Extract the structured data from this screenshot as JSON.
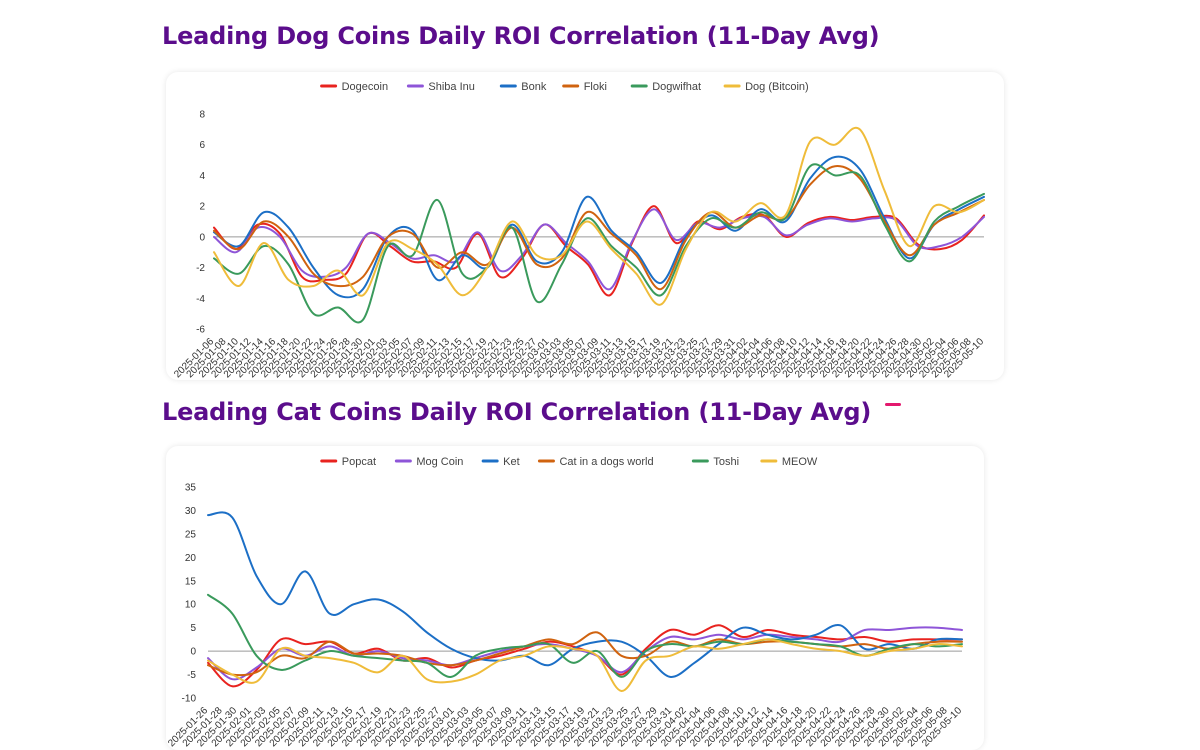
{
  "dog_section": {
    "title": "Leading Dog Coins Daily ROI Correlation (11-Day Avg)"
  },
  "cat_section": {
    "title": "Leading Cat Coins Daily ROI Correlation (11-Day Avg)"
  },
  "chart_data": [
    {
      "type": "line",
      "title": "Leading Dog Coins Daily ROI Correlation (11-Day Avg)",
      "legend_position": "top-center",
      "grid": false,
      "ylim": [
        -6,
        8
      ],
      "yticks": [
        8,
        6,
        4,
        2,
        0,
        -2,
        -4,
        -6
      ],
      "x_start": "2025-01-06",
      "x_end": "2025-05-10",
      "x_tick_labels": [
        "2025-01-06",
        "2025-01-08",
        "2025-01-10",
        "2025-01-12",
        "2025-01-14",
        "2025-01-16",
        "2025-01-18",
        "2025-01-20",
        "2025-01-22",
        "2025-01-24",
        "2025-01-26",
        "2025-01-28",
        "2025-01-30",
        "2025-02-01",
        "2025-02-03",
        "2025-02-05",
        "2025-02-07",
        "2025-02-09",
        "2025-02-11",
        "2025-02-13",
        "2025-02-15",
        "2025-02-17",
        "2025-02-19",
        "2025-02-21",
        "2025-02-23",
        "2025-02-25",
        "2025-02-27",
        "2025-03-01",
        "2025-03-03",
        "2025-03-05",
        "2025-03-07",
        "2025-03-09",
        "2025-03-11",
        "2025-03-13",
        "2025-03-15",
        "2025-03-17",
        "2025-03-19",
        "2025-03-21",
        "2025-03-23",
        "2025-03-25",
        "2025-03-27",
        "2025-03-29",
        "2025-03-31",
        "2025-04-02",
        "2025-04-04",
        "2025-04-06",
        "2025-04-08",
        "2025-04-10",
        "2025-04-12",
        "2025-04-14",
        "2025-04-16",
        "2025-04-18",
        "2025-04-20",
        "2025-04-22",
        "2025-04-24",
        "2025-04-26",
        "2025-04-28",
        "2025-04-30",
        "2025-05-02",
        "2025-05-04",
        "2025-05-06",
        "2025-05-08",
        "2025-05-10"
      ],
      "series": [
        {
          "name": "Dogecoin",
          "color": "#e8231f",
          "values": [
            0.6,
            -0.8,
            0.8,
            0.2,
            -2.6,
            -2.8,
            -2.4,
            0.2,
            -0.6,
            -1.6,
            -1.6,
            -2.0,
            0.2,
            -2.6,
            -1.4,
            0.8,
            -0.6,
            -1.8,
            -3.8,
            -0.4,
            2.0,
            -0.4,
            1.0,
            0.5,
            1.3,
            1.4,
            0.0,
            0.9,
            1.3,
            1.1,
            1.3,
            1.2,
            -0.5,
            -0.8,
            -0.2,
            1.4
          ]
        },
        {
          "name": "Shiba Inu",
          "color": "#8e55d8",
          "values": [
            0.0,
            -1.0,
            0.6,
            0.0,
            -2.2,
            -2.6,
            -2.0,
            0.2,
            -0.4,
            -1.4,
            -1.2,
            -1.6,
            0.3,
            -2.2,
            -1.2,
            0.8,
            -0.4,
            -1.6,
            -3.4,
            -0.3,
            1.8,
            -0.2,
            0.9,
            0.6,
            1.2,
            1.3,
            0.1,
            0.8,
            1.2,
            1.0,
            1.2,
            1.1,
            -0.6,
            -0.6,
            0.0,
            1.3
          ]
        },
        {
          "name": "Bonk",
          "color": "#1c6fc6",
          "values": [
            0.3,
            -0.6,
            1.6,
            0.6,
            -2.0,
            -3.8,
            -3.4,
            0.0,
            0.4,
            -2.8,
            -1.2,
            -2.0,
            0.8,
            -1.6,
            -1.0,
            2.6,
            0.4,
            -1.0,
            -3.0,
            0.0,
            1.4,
            0.4,
            1.8,
            1.0,
            3.8,
            5.2,
            4.4,
            1.2,
            -1.4,
            0.8,
            1.8,
            2.6
          ]
        },
        {
          "name": "Floki",
          "color": "#d0630f",
          "values": [
            0.4,
            -0.8,
            1.0,
            0.0,
            -2.4,
            -3.2,
            -2.6,
            0.0,
            0.2,
            -2.0,
            -1.0,
            -1.8,
            0.6,
            -1.8,
            -1.4,
            1.6,
            0.2,
            -1.2,
            -3.4,
            -0.2,
            1.6,
            0.6,
            1.4,
            1.2,
            3.4,
            4.6,
            3.8,
            1.0,
            -1.2,
            0.8,
            1.6,
            2.4
          ]
        },
        {
          "name": "Dogwifhat",
          "color": "#3a9a5c",
          "values": [
            -1.4,
            -2.4,
            -0.6,
            -1.8,
            -5.0,
            -4.6,
            -5.4,
            -0.6,
            -1.2,
            2.4,
            -2.4,
            -2.0,
            0.6,
            -4.2,
            -1.8,
            1.2,
            -0.6,
            -2.0,
            -3.8,
            -0.6,
            1.2,
            0.6,
            1.6,
            1.2,
            4.6,
            4.0,
            4.0,
            0.8,
            -1.6,
            1.0,
            2.0,
            2.8
          ]
        },
        {
          "name": "Dog (Bitcoin)",
          "color": "#efbc3a",
          "values": [
            -1.0,
            -3.2,
            -0.4,
            -2.8,
            -3.2,
            -2.2,
            -3.8,
            -0.4,
            -0.8,
            -1.8,
            -3.8,
            -2.0,
            1.0,
            -1.2,
            -1.2,
            1.0,
            -0.8,
            -2.4,
            -4.4,
            -0.8,
            1.6,
            1.0,
            2.2,
            1.4,
            6.2,
            6.0,
            7.0,
            3.0,
            -0.6,
            2.0,
            1.6,
            2.4
          ]
        }
      ]
    },
    {
      "type": "line",
      "title": "Leading Cat Coins Daily ROI Correlation (11-Day Avg)",
      "legend_position": "top-center",
      "grid": false,
      "ylim": [
        -10,
        35
      ],
      "yticks": [
        35,
        30,
        25,
        20,
        15,
        10,
        5,
        0,
        -5,
        -10
      ],
      "x_start": "2025-01-26",
      "x_end": "2025-05-10",
      "x_tick_labels": [
        "2025-01-26",
        "2025-01-28",
        "2025-01-30",
        "2025-02-01",
        "2025-02-03",
        "2025-02-05",
        "2025-02-07",
        "2025-02-09",
        "2025-02-11",
        "2025-02-13",
        "2025-02-15",
        "2025-02-17",
        "2025-02-19",
        "2025-02-21",
        "2025-02-23",
        "2025-02-25",
        "2025-02-27",
        "2025-03-01",
        "2025-03-03",
        "2025-03-05",
        "2025-03-07",
        "2025-03-09",
        "2025-03-11",
        "2025-03-13",
        "2025-03-15",
        "2025-03-17",
        "2025-03-19",
        "2025-03-21",
        "2025-03-23",
        "2025-03-25",
        "2025-03-27",
        "2025-03-29",
        "2025-03-31",
        "2025-04-02",
        "2025-04-04",
        "2025-04-06",
        "2025-04-08",
        "2025-04-10",
        "2025-04-12",
        "2025-04-14",
        "2025-04-16",
        "2025-04-18",
        "2025-04-20",
        "2025-04-22",
        "2025-04-24",
        "2025-04-26",
        "2025-04-28",
        "2025-04-30",
        "2025-05-02",
        "2025-05-04",
        "2025-05-06",
        "2025-05-08",
        "2025-05-10"
      ],
      "series": [
        {
          "name": "Popcat",
          "color": "#e8231f",
          "values": [
            -2.5,
            -7.5,
            -4.0,
            2.5,
            1.5,
            2.0,
            -0.5,
            0.5,
            -2.0,
            -1.5,
            -3.5,
            -2.0,
            -1.0,
            0.5,
            2.0,
            1.0,
            -1.0,
            -5.0,
            0.5,
            4.5,
            3.5,
            5.5,
            3.0,
            4.5,
            3.5,
            3.0,
            2.5,
            3.0,
            2.0,
            2.5,
            2.5,
            2.5
          ]
        },
        {
          "name": "Mog Coin",
          "color": "#8e55d8",
          "values": [
            -1.5,
            -6.0,
            -3.5,
            0.5,
            -1.0,
            1.0,
            -1.0,
            0.0,
            -1.5,
            -2.0,
            -3.0,
            -1.5,
            0.0,
            1.0,
            1.5,
            0.5,
            -1.0,
            -4.5,
            0.0,
            3.0,
            2.5,
            3.5,
            2.5,
            3.5,
            3.0,
            2.5,
            2.0,
            4.5,
            4.5,
            5.0,
            5.0,
            4.5
          ]
        },
        {
          "name": "Ket",
          "color": "#1c6fc6",
          "values": [
            29.0,
            28.5,
            16.0,
            10.0,
            17.0,
            8.0,
            10.0,
            11.0,
            8.5,
            4.0,
            0.5,
            -1.5,
            -2.0,
            -1.0,
            -3.0,
            0.5,
            2.0,
            2.0,
            -1.0,
            -5.5,
            -2.5,
            1.5,
            5.0,
            3.5,
            2.5,
            3.5,
            5.5,
            0.5,
            1.5,
            0.5,
            2.5,
            2.5
          ]
        },
        {
          "name": "Cat in a dogs world",
          "color": "#d0630f",
          "values": [
            -3.0,
            -5.0,
            -4.5,
            -1.0,
            -1.5,
            2.0,
            -0.5,
            -0.5,
            -1.0,
            -2.5,
            -3.0,
            -2.0,
            -0.5,
            1.0,
            2.5,
            1.5,
            4.0,
            -1.0,
            -1.0,
            2.0,
            1.0,
            2.5,
            1.5,
            2.0,
            2.0,
            1.5,
            1.0,
            1.5,
            0.5,
            1.5,
            2.0,
            2.0
          ]
        },
        {
          "name": "Toshi",
          "color": "#3a9a5c",
          "values": [
            12.0,
            8.0,
            -1.0,
            -4.0,
            -2.0,
            0.0,
            -1.0,
            -1.5,
            -2.0,
            -2.5,
            -5.5,
            -1.0,
            0.5,
            1.0,
            1.5,
            -2.5,
            0.0,
            -5.5,
            0.0,
            1.5,
            1.0,
            2.0,
            1.5,
            2.5,
            2.0,
            1.5,
            1.0,
            -1.0,
            0.5,
            1.5,
            1.0,
            1.5
          ]
        },
        {
          "name": "MEOW",
          "color": "#efbc3a",
          "values": [
            -2.0,
            -5.0,
            -6.5,
            0.5,
            -1.0,
            -1.5,
            -2.5,
            -4.5,
            -1.0,
            -6.0,
            -6.5,
            -5.0,
            -2.0,
            -1.0,
            1.0,
            0.5,
            -1.0,
            -8.5,
            -2.0,
            -1.0,
            1.0,
            0.5,
            1.5,
            2.5,
            1.5,
            0.5,
            0.0,
            -1.0,
            0.0,
            0.5,
            1.5,
            1.0
          ]
        }
      ]
    }
  ]
}
